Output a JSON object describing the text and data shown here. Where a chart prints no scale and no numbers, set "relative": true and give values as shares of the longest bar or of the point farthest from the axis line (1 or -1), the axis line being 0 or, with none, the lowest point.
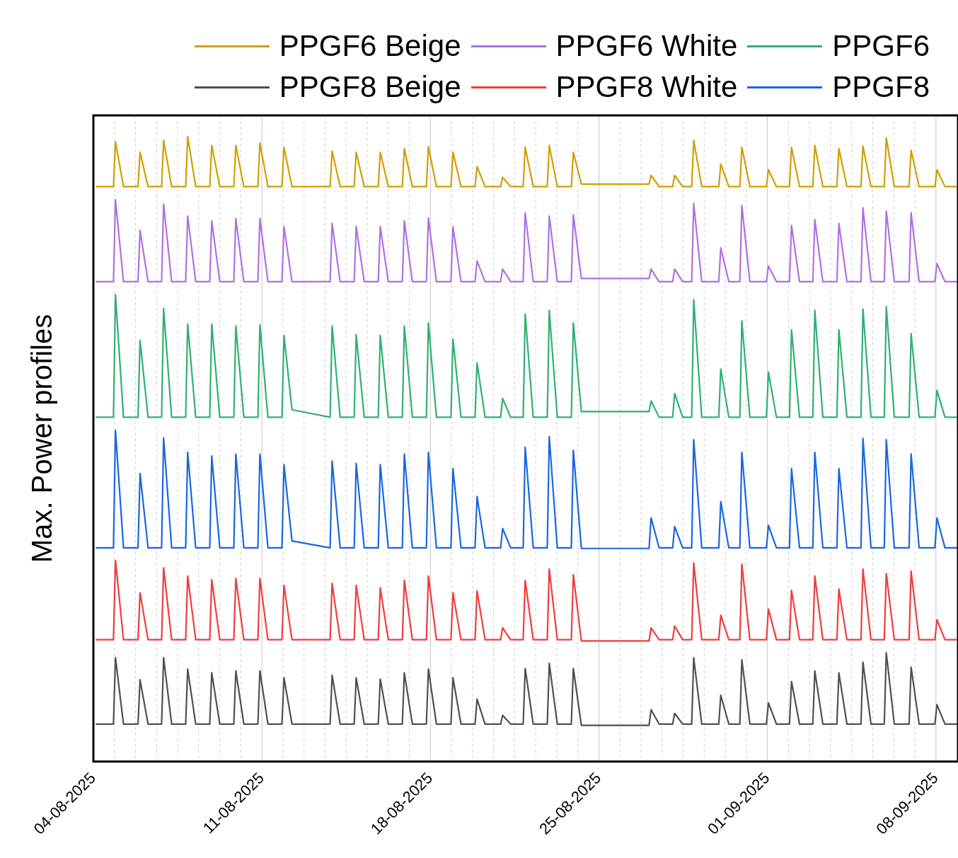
{
  "chart_data": {
    "type": "line",
    "ylabel": "Max. Power profiles",
    "relative": true,
    "legend": "top",
    "grid": "x",
    "xlim": [
      "2025-08-04",
      "2025-09-08T22:00"
    ],
    "xticks": [
      {
        "value": "2025-08-04",
        "label": "04-08-2025"
      },
      {
        "value": "2025-08-04T21:00",
        "label": null
      },
      {
        "value": "2025-08-05T18:00",
        "label": null
      },
      {
        "value": "2025-08-06T15:00",
        "label": null
      },
      {
        "value": "2025-08-07T12:00",
        "label": null
      },
      {
        "value": "2025-08-08T09:00",
        "label": null
      },
      {
        "value": "2025-08-09T06:00",
        "label": null
      },
      {
        "value": "2025-08-10T03:00",
        "label": null
      },
      {
        "value": "2025-08-11",
        "label": "11-08-2025"
      },
      {
        "value": "2025-08-11T21:00",
        "label": null
      },
      {
        "value": "2025-08-12T18:00",
        "label": null
      },
      {
        "value": "2025-08-13T15:00",
        "label": null
      },
      {
        "value": "2025-08-14T12:00",
        "label": null
      },
      {
        "value": "2025-08-15T09:00",
        "label": null
      },
      {
        "value": "2025-08-16T06:00",
        "label": null
      },
      {
        "value": "2025-08-17T03:00",
        "label": null
      },
      {
        "value": "2025-08-18",
        "label": "18-08-2025"
      },
      {
        "value": "2025-08-18T21:00",
        "label": null
      },
      {
        "value": "2025-08-19T18:00",
        "label": null
      },
      {
        "value": "2025-08-20T15:00",
        "label": null
      },
      {
        "value": "2025-08-21T12:00",
        "label": null
      },
      {
        "value": "2025-08-22T09:00",
        "label": null
      },
      {
        "value": "2025-08-23T06:00",
        "label": null
      },
      {
        "value": "2025-08-24T03:00",
        "label": null
      },
      {
        "value": "2025-08-25",
        "label": "25-08-2025"
      },
      {
        "value": "2025-08-25T21:00",
        "label": null
      },
      {
        "value": "2025-08-26T18:00",
        "label": null
      },
      {
        "value": "2025-08-27T15:00",
        "label": null
      },
      {
        "value": "2025-08-28T12:00",
        "label": null
      },
      {
        "value": "2025-08-29T09:00",
        "label": null
      },
      {
        "value": "2025-08-30T06:00",
        "label": null
      },
      {
        "value": "2025-08-31T03:00",
        "label": null
      },
      {
        "value": "2025-09-01",
        "label": "01-09-2025"
      },
      {
        "value": "2025-09-01T21:00",
        "label": null
      },
      {
        "value": "2025-09-02T18:00",
        "label": null
      },
      {
        "value": "2025-09-03T15:00",
        "label": null
      },
      {
        "value": "2025-09-04T12:00",
        "label": null
      },
      {
        "value": "2025-09-05T09:00",
        "label": null
      },
      {
        "value": "2025-09-06T06:00",
        "label": null
      },
      {
        "value": "2025-09-07T03:00",
        "label": null
      },
      {
        "value": "2025-09-08",
        "label": "08-09-2025"
      }
    ],
    "x": [
      "2025-08-04T03:00",
      "2025-08-04T20:00",
      "2025-08-04T22:00",
      "2025-08-05T06:00",
      "2025-08-05T20:30",
      "2025-08-05T22:30",
      "2025-08-06T06:30",
      "2025-08-06T20:00",
      "2025-08-06T22:00",
      "2025-08-07T06:00",
      "2025-08-07T20:00",
      "2025-08-07T22:00",
      "2025-08-08T06:00",
      "2025-08-08T20:00",
      "2025-08-08T22:00",
      "2025-08-09T06:00",
      "2025-08-09T20:00",
      "2025-08-09T22:00",
      "2025-08-10T06:00",
      "2025-08-10T20:00",
      "2025-08-10T22:00",
      "2025-08-11T06:00",
      "2025-08-11T20:00",
      "2025-08-11T22:00",
      "2025-08-12T06:00",
      "2025-08-13T20:00",
      "2025-08-13T22:00",
      "2025-08-14T06:00",
      "2025-08-14T20:00",
      "2025-08-14T22:00",
      "2025-08-15T06:00",
      "2025-08-15T20:00",
      "2025-08-15T22:00",
      "2025-08-16T06:00",
      "2025-08-16T20:00",
      "2025-08-16T22:00",
      "2025-08-17T06:00",
      "2025-08-17T20:00",
      "2025-08-17T22:00",
      "2025-08-18T06:00",
      "2025-08-18T20:30",
      "2025-08-18T22:30",
      "2025-08-19T06:30",
      "2025-08-19T20:30",
      "2025-08-19T22:30",
      "2025-08-20T06:30",
      "2025-08-20T22:00",
      "2025-08-21T00:00",
      "2025-08-21T08:00",
      "2025-08-21T20:30",
      "2025-08-21T22:30",
      "2025-08-22T06:30",
      "2025-08-22T20:30",
      "2025-08-22T22:30",
      "2025-08-23T06:30",
      "2025-08-23T20:30",
      "2025-08-23T22:30",
      "2025-08-24T06:30",
      "2025-08-27T02:00",
      "2025-08-27T04:00",
      "2025-08-27T12:00",
      "2025-08-28T01:30",
      "2025-08-28T03:30",
      "2025-08-28T11:30",
      "2025-08-28T20:30",
      "2025-08-28T22:30",
      "2025-08-29T06:30",
      "2025-08-29T23:30",
      "2025-08-30T01:30",
      "2025-08-30T09:30",
      "2025-08-30T20:30",
      "2025-08-30T22:30",
      "2025-08-31T06:30",
      "2025-08-31T23:00",
      "2025-09-01T01:00",
      "2025-09-01T09:00",
      "2025-09-01T22:00",
      "2025-09-02T00:00",
      "2025-09-02T08:00",
      "2025-09-02T21:15",
      "2025-09-02T23:15",
      "2025-09-03T07:15",
      "2025-09-03T21:15",
      "2025-09-03T23:15",
      "2025-09-04T07:15",
      "2025-09-04T21:15",
      "2025-09-04T23:15",
      "2025-09-05T07:15",
      "2025-09-05T20:30",
      "2025-09-05T22:30",
      "2025-09-06T06:30",
      "2025-09-06T21:15",
      "2025-09-06T23:15",
      "2025-09-07T07:15",
      "2025-09-07T23:00",
      "2025-09-08T01:00",
      "2025-09-08T09:00",
      "2025-09-08T22:00"
    ],
    "series": [
      {
        "name": "PPGF6 Beige",
        "color": "#d09e00",
        "values": [
          0.92,
          0.92,
          0.992,
          0.92,
          0.92,
          0.975,
          0.92,
          0.92,
          0.994,
          0.92,
          0.92,
          1.0,
          0.92,
          0.92,
          0.986,
          0.92,
          0.92,
          0.986,
          0.92,
          0.92,
          0.99,
          0.92,
          0.92,
          0.983,
          0.92,
          0.92,
          0.977,
          0.92,
          0.92,
          0.975,
          0.92,
          0.92,
          0.975,
          0.92,
          0.92,
          0.981,
          0.92,
          0.92,
          0.984,
          0.92,
          0.92,
          0.975,
          0.92,
          0.92,
          0.952,
          0.92,
          0.92,
          0.935,
          0.92,
          0.92,
          0.983,
          0.92,
          0.92,
          0.986,
          0.92,
          0.92,
          0.975,
          0.924,
          0.924,
          0.938,
          0.92,
          0.92,
          0.938,
          0.92,
          0.92,
          0.994,
          0.92,
          0.92,
          0.956,
          0.92,
          0.92,
          0.983,
          0.92,
          0.92,
          0.947,
          0.92,
          0.92,
          0.983,
          0.92,
          0.92,
          0.986,
          0.92,
          0.92,
          0.981,
          0.92,
          0.92,
          0.985,
          0.92,
          0.92,
          0.998,
          0.92,
          0.92,
          0.978,
          0.92,
          0.92,
          0.947,
          0.92,
          0.92
        ]
      },
      {
        "name": "PPGF6 White",
        "color": "#b070e0",
        "values": [
          0.768,
          0.768,
          0.899,
          0.768,
          0.768,
          0.85,
          0.768,
          0.768,
          0.892,
          0.768,
          0.768,
          0.873,
          0.768,
          0.768,
          0.865,
          0.768,
          0.768,
          0.869,
          0.768,
          0.768,
          0.869,
          0.768,
          0.768,
          0.856,
          0.768,
          0.768,
          0.861,
          0.768,
          0.768,
          0.856,
          0.768,
          0.768,
          0.856,
          0.768,
          0.768,
          0.865,
          0.768,
          0.768,
          0.87,
          0.768,
          0.768,
          0.856,
          0.768,
          0.768,
          0.801,
          0.768,
          0.768,
          0.788,
          0.768,
          0.768,
          0.878,
          0.768,
          0.768,
          0.873,
          0.768,
          0.768,
          0.875,
          0.773,
          0.773,
          0.788,
          0.768,
          0.768,
          0.788,
          0.768,
          0.768,
          0.893,
          0.768,
          0.768,
          0.822,
          0.768,
          0.768,
          0.89,
          0.768,
          0.768,
          0.793,
          0.768,
          0.768,
          0.858,
          0.768,
          0.768,
          0.867,
          0.768,
          0.768,
          0.861,
          0.768,
          0.768,
          0.886,
          0.768,
          0.768,
          0.881,
          0.768,
          0.768,
          0.878,
          0.768,
          0.768,
          0.797,
          0.768,
          0.768
        ]
      },
      {
        "name": "PPGF6",
        "color": "#30b070",
        "values": [
          0.551,
          0.551,
          0.747,
          0.551,
          0.551,
          0.674,
          0.551,
          0.551,
          0.725,
          0.551,
          0.551,
          0.7,
          0.551,
          0.551,
          0.7,
          0.551,
          0.551,
          0.697,
          0.551,
          0.551,
          0.699,
          0.551,
          0.551,
          0.682,
          0.563,
          0.551,
          0.697,
          0.551,
          0.551,
          0.683,
          0.551,
          0.551,
          0.682,
          0.551,
          0.551,
          0.697,
          0.551,
          0.551,
          0.702,
          0.551,
          0.551,
          0.676,
          0.551,
          0.551,
          0.638,
          0.551,
          0.551,
          0.581,
          0.551,
          0.551,
          0.716,
          0.551,
          0.551,
          0.722,
          0.551,
          0.551,
          0.702,
          0.56,
          0.56,
          0.577,
          0.551,
          0.551,
          0.589,
          0.551,
          0.551,
          0.739,
          0.551,
          0.551,
          0.628,
          0.551,
          0.551,
          0.705,
          0.551,
          0.551,
          0.623,
          0.551,
          0.551,
          0.691,
          0.551,
          0.551,
          0.722,
          0.551,
          0.551,
          0.691,
          0.551,
          0.551,
          0.724,
          0.551,
          0.551,
          0.728,
          0.551,
          0.551,
          0.685,
          0.551,
          0.551,
          0.594,
          0.551,
          0.551
        ]
      },
      {
        "name": "PPGF8 Beige",
        "color": "#505050",
        "values": [
          0.06,
          0.06,
          0.166,
          0.06,
          0.06,
          0.131,
          0.06,
          0.06,
          0.166,
          0.06,
          0.06,
          0.148,
          0.06,
          0.06,
          0.142,
          0.06,
          0.06,
          0.145,
          0.06,
          0.06,
          0.145,
          0.06,
          0.06,
          0.134,
          0.06,
          0.06,
          0.138,
          0.06,
          0.06,
          0.134,
          0.06,
          0.06,
          0.132,
          0.06,
          0.06,
          0.142,
          0.06,
          0.06,
          0.148,
          0.06,
          0.06,
          0.134,
          0.06,
          0.06,
          0.1,
          0.06,
          0.06,
          0.074,
          0.06,
          0.06,
          0.149,
          0.06,
          0.06,
          0.157,
          0.06,
          0.06,
          0.149,
          0.058,
          0.058,
          0.083,
          0.06,
          0.06,
          0.077,
          0.06,
          0.06,
          0.166,
          0.06,
          0.06,
          0.106,
          0.06,
          0.06,
          0.163,
          0.06,
          0.06,
          0.094,
          0.06,
          0.06,
          0.128,
          0.06,
          0.06,
          0.145,
          0.06,
          0.06,
          0.142,
          0.06,
          0.06,
          0.159,
          0.06,
          0.06,
          0.174,
          0.06,
          0.06,
          0.151,
          0.06,
          0.06,
          0.091,
          0.06,
          0.06
        ]
      },
      {
        "name": "PPGF8 White",
        "color": "#f03c3c",
        "values": [
          0.195,
          0.195,
          0.322,
          0.195,
          0.195,
          0.27,
          0.195,
          0.195,
          0.31,
          0.195,
          0.195,
          0.297,
          0.195,
          0.195,
          0.291,
          0.195,
          0.195,
          0.293,
          0.195,
          0.195,
          0.293,
          0.195,
          0.195,
          0.282,
          0.195,
          0.195,
          0.285,
          0.195,
          0.195,
          0.282,
          0.195,
          0.195,
          0.278,
          0.195,
          0.195,
          0.29,
          0.195,
          0.195,
          0.297,
          0.195,
          0.195,
          0.27,
          0.195,
          0.195,
          0.273,
          0.195,
          0.195,
          0.214,
          0.195,
          0.195,
          0.29,
          0.195,
          0.195,
          0.308,
          0.195,
          0.195,
          0.299,
          0.193,
          0.193,
          0.214,
          0.195,
          0.195,
          0.217,
          0.195,
          0.195,
          0.318,
          0.195,
          0.195,
          0.234,
          0.195,
          0.195,
          0.316,
          0.195,
          0.195,
          0.244,
          0.195,
          0.195,
          0.274,
          0.195,
          0.195,
          0.297,
          0.195,
          0.195,
          0.276,
          0.195,
          0.195,
          0.308,
          0.195,
          0.195,
          0.301,
          0.195,
          0.195,
          0.305,
          0.195,
          0.195,
          0.227,
          0.195,
          0.195
        ]
      },
      {
        "name": "PPGF8",
        "color": "#1a66e0",
        "values": [
          0.342,
          0.342,
          0.53,
          0.342,
          0.342,
          0.461,
          0.342,
          0.342,
          0.518,
          0.342,
          0.342,
          0.495,
          0.342,
          0.342,
          0.489,
          0.342,
          0.342,
          0.492,
          0.342,
          0.342,
          0.492,
          0.342,
          0.342,
          0.475,
          0.353,
          0.342,
          0.481,
          0.342,
          0.342,
          0.477,
          0.342,
          0.342,
          0.475,
          0.342,
          0.342,
          0.492,
          0.342,
          0.342,
          0.495,
          0.342,
          0.342,
          0.469,
          0.342,
          0.342,
          0.424,
          0.342,
          0.342,
          0.373,
          0.342,
          0.342,
          0.503,
          0.342,
          0.342,
          0.52,
          0.342,
          0.342,
          0.498,
          0.341,
          0.341,
          0.39,
          0.342,
          0.342,
          0.376,
          0.342,
          0.342,
          0.515,
          0.342,
          0.342,
          0.416,
          0.342,
          0.342,
          0.495,
          0.342,
          0.342,
          0.378,
          0.342,
          0.342,
          0.469,
          0.342,
          0.342,
          0.495,
          0.342,
          0.342,
          0.469,
          0.342,
          0.342,
          0.517,
          0.342,
          0.342,
          0.515,
          0.342,
          0.342,
          0.492,
          0.342,
          0.342,
          0.39,
          0.342,
          0.342
        ]
      }
    ]
  }
}
